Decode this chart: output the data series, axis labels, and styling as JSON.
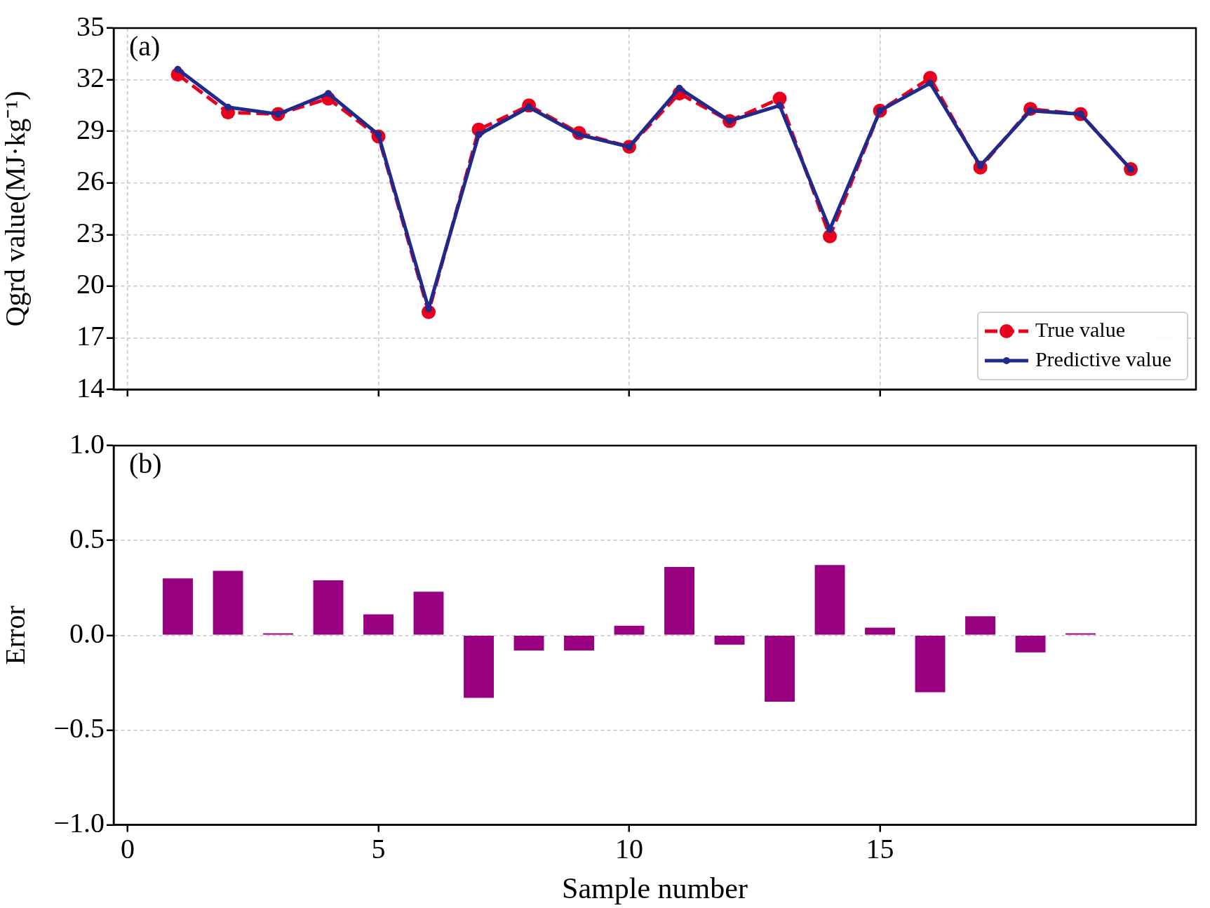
{
  "chart_data": [
    {
      "type": "line",
      "ylabel": "Qgrd value(MJ·kg⁻¹)",
      "annotations": [
        "(a)"
      ],
      "xlim": [
        -0.28,
        21.3
      ],
      "xticks": [
        0,
        5,
        10,
        15
      ],
      "ylim": [
        14,
        35
      ],
      "yticks": [
        14,
        17,
        20,
        23,
        26,
        29,
        32,
        35
      ],
      "grid": true,
      "legend": "bottom right",
      "tick_labels": "y",
      "series": [
        {
          "name": "True value",
          "color": "#e8001c",
          "marker": "circle",
          "line_style": "dashed",
          "x": [
            1,
            2,
            3,
            4,
            5,
            6,
            7,
            8,
            9,
            10,
            11,
            12,
            13,
            14,
            15,
            16,
            17,
            18,
            19,
            20
          ],
          "values": [
            32.3,
            30.1,
            30.0,
            30.9,
            28.7,
            18.5,
            29.1,
            30.5,
            28.9,
            28.1,
            31.2,
            29.6,
            30.9,
            22.9,
            30.2,
            32.1,
            26.9,
            30.3,
            30.0,
            26.8
          ]
        },
        {
          "name": "Predictive value",
          "color": "#1f2a8c",
          "marker": "circle",
          "line_style": "solid",
          "x": [
            1,
            2,
            3,
            4,
            5,
            6,
            7,
            8,
            9,
            10,
            11,
            12,
            13,
            14,
            15,
            16,
            17,
            18,
            19,
            20
          ],
          "values": [
            32.6,
            30.4,
            30.0,
            31.2,
            28.8,
            18.7,
            28.8,
            30.4,
            28.8,
            28.1,
            31.5,
            29.6,
            30.5,
            23.3,
            30.2,
            31.8,
            27.0,
            30.2,
            30.0,
            26.8
          ]
        }
      ]
    },
    {
      "type": "bar",
      "xlabel": "Sample number",
      "ylabel": "Error",
      "annotations": [
        "(b)"
      ],
      "xlim": [
        -0.28,
        21.3
      ],
      "xticks": [
        0,
        5,
        10,
        15
      ],
      "ylim": [
        -1,
        1
      ],
      "yticks": [
        {
          "value": -1,
          "label": "−1.0"
        },
        {
          "value": -0.5,
          "label": "−0.5"
        },
        {
          "value": 0,
          "label": "0.0"
        },
        {
          "value": 0.5,
          "label": "0.5"
        },
        {
          "value": 1,
          "label": "1.0"
        }
      ],
      "grid": "y",
      "color": "#990080",
      "x": [
        1,
        2,
        3,
        4,
        5,
        6,
        7,
        8,
        9,
        10,
        11,
        12,
        13,
        14,
        15,
        16,
        17,
        18,
        19
      ],
      "values": [
        0.3,
        0.34,
        0.01,
        0.29,
        0.11,
        0.23,
        -0.33,
        -0.08,
        -0.08,
        0.05,
        0.36,
        -0.05,
        -0.35,
        0.37,
        0.04,
        -0.3,
        0.1,
        -0.09,
        0.01
      ]
    }
  ]
}
